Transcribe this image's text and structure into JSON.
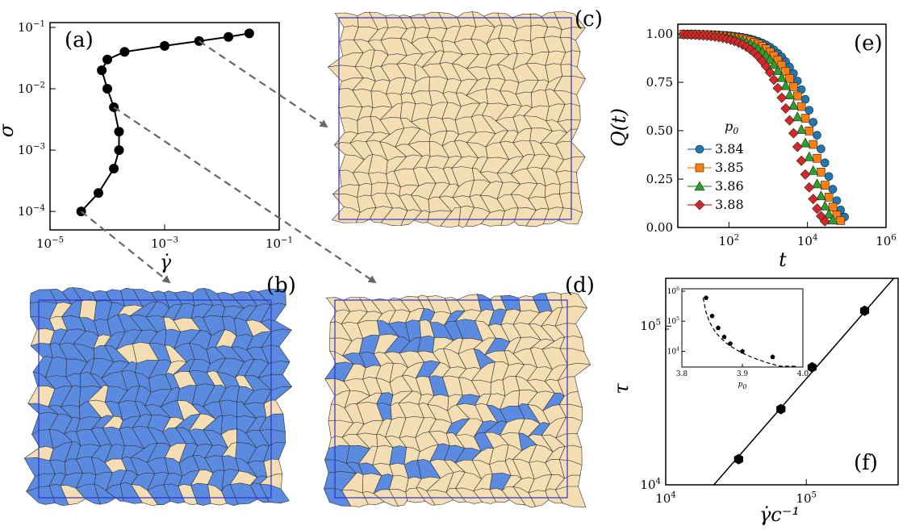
{
  "colors": {
    "blue_cell": "#5b8be0",
    "tan_cell": "#f5deb3",
    "box": "#3030d0",
    "arrow": "#666666"
  },
  "chart_data": [
    {
      "id": "a",
      "panel_label": "(a)",
      "type": "line",
      "xlabel": "γ̇",
      "ylabel": "σ",
      "xscale": "log",
      "yscale": "log",
      "xlim": [
        1e-05,
        0.1
      ],
      "ylim": [
        5e-05,
        0.12
      ],
      "xticks": [
        {
          "v": 1e-05,
          "base": "10",
          "exp": "−5"
        },
        {
          "v": 0.001,
          "base": "10",
          "exp": "−3"
        },
        {
          "v": 0.1,
          "base": "10",
          "exp": "−1"
        }
      ],
      "yticks": [
        {
          "v": 0.0001,
          "base": "10",
          "exp": "−4"
        },
        {
          "v": 0.001,
          "base": "10",
          "exp": "−3"
        },
        {
          "v": 0.01,
          "base": "10",
          "exp": "−2"
        },
        {
          "v": 0.1,
          "base": "10",
          "exp": "−1"
        }
      ],
      "points": [
        {
          "x": 3.5e-05,
          "y": 0.0001
        },
        {
          "x": 7e-05,
          "y": 0.0002
        },
        {
          "x": 0.00013,
          "y": 0.0005
        },
        {
          "x": 0.00016,
          "y": 0.001
        },
        {
          "x": 0.00016,
          "y": 0.002
        },
        {
          "x": 0.00013,
          "y": 0.005
        },
        {
          "x": 0.0001,
          "y": 0.01
        },
        {
          "x": 8e-05,
          "y": 0.02
        },
        {
          "x": 0.0001,
          "y": 0.03
        },
        {
          "x": 0.0002,
          "y": 0.04
        },
        {
          "x": 0.001,
          "y": 0.05
        },
        {
          "x": 0.004,
          "y": 0.06
        },
        {
          "x": 0.013,
          "y": 0.07
        },
        {
          "x": 0.03,
          "y": 0.08
        }
      ]
    },
    {
      "id": "e",
      "panel_label": "(e)",
      "type": "scatter",
      "xlabel": "t",
      "ylabel": "Q(t)",
      "xscale": "log",
      "xlim": [
        5,
        1000000
      ],
      "ylim": [
        0,
        1.05
      ],
      "xticks": [
        {
          "v": 100,
          "base": "10",
          "exp": "2"
        },
        {
          "v": 10000,
          "base": "10",
          "exp": "4"
        },
        {
          "v": 1000000,
          "base": "10",
          "exp": "6"
        }
      ],
      "yticks": [
        "0.00",
        "0.25",
        "0.50",
        "0.75",
        "1.00"
      ],
      "legend_title": "p0",
      "legend_position": "center-left",
      "series": [
        {
          "name": "3.84",
          "tau": 25000,
          "beta": 0.85,
          "color": "#1f77b4",
          "marker": "circle"
        },
        {
          "name": "3.85",
          "tau": 17000,
          "beta": 0.85,
          "color": "#ff7f0e",
          "marker": "square"
        },
        {
          "name": "3.86",
          "tau": 11000,
          "beta": 0.85,
          "color": "#2ca02c",
          "marker": "triangle"
        },
        {
          "name": "3.88",
          "tau": 6500,
          "beta": 0.85,
          "color": "#d62728",
          "marker": "diamond"
        }
      ]
    },
    {
      "id": "f",
      "panel_label": "(f)",
      "type": "scatter",
      "xlabel": "γ̇c⁻¹",
      "ylabel": "τ",
      "xscale": "log",
      "yscale": "log",
      "xlim": [
        10000,
        450000
      ],
      "ylim": [
        10000,
        200000
      ],
      "xticks": [
        {
          "v": 10000,
          "base": "10",
          "exp": "4"
        },
        {
          "v": 100000,
          "base": "10",
          "exp": "5"
        }
      ],
      "yticks": [
        {
          "v": 10000,
          "base": "10",
          "exp": "4"
        },
        {
          "v": 100000,
          "base": "10",
          "exp": "5"
        }
      ],
      "points": [
        {
          "x": 33000,
          "y": 14500
        },
        {
          "x": 66000,
          "y": 30000
        },
        {
          "x": 110000,
          "y": 55000
        },
        {
          "x": 260000,
          "y": 125000
        }
      ],
      "fit_line": {
        "from": [
          22000,
          10000
        ],
        "to": [
          450000,
          215000
        ]
      },
      "inset": {
        "xlabel": "p0",
        "ylabel": "τ",
        "xlim": [
          3.8,
          4.0
        ],
        "xticks": [
          "3.8",
          "3.9",
          "4.0"
        ],
        "ylim": [
          3000,
          1200000
        ],
        "yticks": [
          {
            "v": 10000,
            "base": "10",
            "exp": "4"
          },
          {
            "v": 100000,
            "base": "10",
            "exp": "5"
          },
          {
            "v": 1000000,
            "base": "10",
            "exp": "6"
          }
        ],
        "points": [
          {
            "x": 3.84,
            "y": 600000
          },
          {
            "x": 3.85,
            "y": 150000
          },
          {
            "x": 3.86,
            "y": 60000
          },
          {
            "x": 3.87,
            "y": 30000
          },
          {
            "x": 3.88,
            "y": 18000
          },
          {
            "x": 3.9,
            "y": 10000
          },
          {
            "x": 3.95,
            "y": 6500
          }
        ]
      }
    }
  ],
  "snapshots": [
    {
      "id": "b",
      "panel_label": "(b)",
      "blue_fraction": 0.9
    },
    {
      "id": "c",
      "panel_label": "(c)",
      "blue_fraction": 0.0
    },
    {
      "id": "d",
      "panel_label": "(d)",
      "blue_fraction": 0.2
    }
  ],
  "arrow_links": [
    {
      "from_point": 11,
      "to_panel": "c"
    },
    {
      "from_point": 5,
      "to_panel": "d"
    },
    {
      "from_point": 0,
      "to_panel": "b"
    }
  ]
}
